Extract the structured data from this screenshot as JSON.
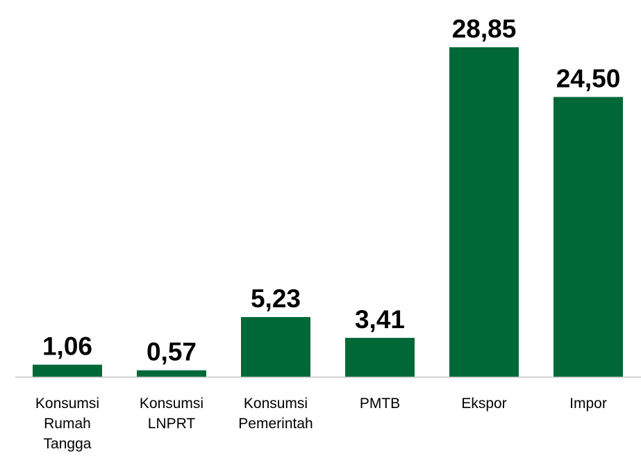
{
  "chart_data": {
    "type": "bar",
    "categories": [
      "Konsumsi Rumah Tangga",
      "Konsumsi LNPRT",
      "Konsumsi Pemerintah",
      "PMTB",
      "Ekspor",
      "Impor"
    ],
    "values": [
      1.06,
      0.57,
      5.23,
      3.41,
      28.85,
      24.5
    ],
    "value_labels": [
      "1,06",
      "0,57",
      "5,23",
      "3,41",
      "28,85",
      "24,50"
    ],
    "color": "#006837"
  }
}
